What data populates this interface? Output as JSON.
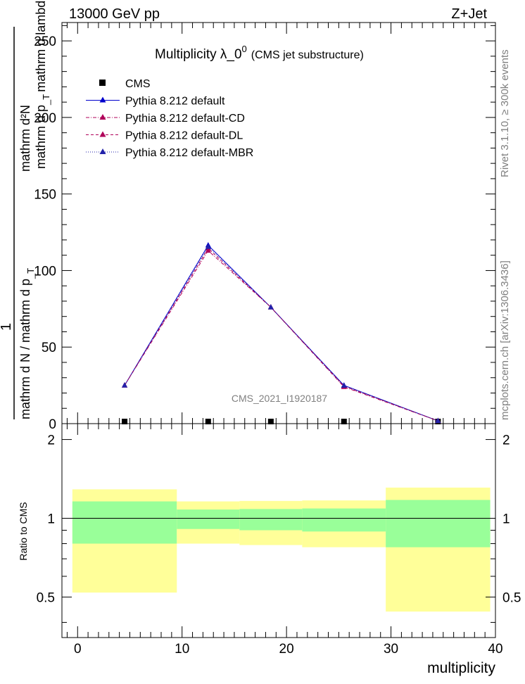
{
  "header": {
    "energy_label": "13000 GeV pp",
    "process_label": "Z+Jet"
  },
  "side_labels": {
    "rivet": "Rivet 3.1.10, ≥ 300k events",
    "mcplots": "mcplots.cern.ch [arXiv:1306.3436]"
  },
  "watermark": "CMS_2021_I1920187",
  "chart_data": [
    {
      "type": "line",
      "title_main": "Multiplicity  λ_0",
      "title_sup": "0",
      "title_sub": "(CMS jet substructure)",
      "ylabel_top": "1",
      "ylabel_bottom": "mathrm d N / mathrm d p",
      "ylabel_frac": "mathrm d²N",
      "ylabel_frac_den": "mathrm d p",
      "ylabel_mid": "_T",
      "ylabel_mid2": "_T",
      "ylabel_lambda": "mathrm d lambda",
      "ylim": [
        0,
        262
      ],
      "yticks": [
        0,
        50,
        100,
        150,
        200,
        250
      ],
      "xlim": [
        -1.5,
        40
      ],
      "legend_position": "top-left",
      "series": [
        {
          "name": "CMS",
          "color": "#000000",
          "style": "marker",
          "x": [
            4.5,
            12.5,
            18.5,
            25.5,
            34.5
          ],
          "y": [
            0.3,
            0.3,
            0.3,
            0.3,
            0.3
          ]
        },
        {
          "name": "Pythia 8.212 default",
          "color": "#0000cc",
          "style": "solid",
          "x": [
            4.5,
            12.5,
            18.5,
            25.5,
            34.5
          ],
          "y": [
            25,
            116.5,
            76,
            25,
            1.8
          ]
        },
        {
          "name": "Pythia 8.212 default-CD",
          "color": "#b0005a",
          "style": "dashdot",
          "x": [
            4.5,
            12.5,
            18.5,
            25.5,
            34.5
          ],
          "y": [
            25,
            113,
            76,
            24,
            1.8
          ]
        },
        {
          "name": "Pythia 8.212 default-DL",
          "color": "#b0005a",
          "style": "dashed",
          "x": [
            4.5,
            12.5,
            18.5,
            25.5,
            34.5
          ],
          "y": [
            25,
            114.5,
            76,
            24.5,
            1.8
          ]
        },
        {
          "name": "Pythia 8.212 default-MBR",
          "color": "#2222aa",
          "style": "dotted",
          "x": [
            4.5,
            12.5,
            18.5,
            25.5,
            34.5
          ],
          "y": [
            25,
            115.5,
            76,
            24.8,
            1.8
          ]
        }
      ]
    },
    {
      "type": "area",
      "ylabel": "Ratio to CMS",
      "xlabel": "multiplicity",
      "xlim": [
        -1.5,
        40
      ],
      "xticks": [
        0,
        10,
        20,
        30,
        40
      ],
      "ylim": [
        0.35,
        2.3
      ],
      "yticks": [
        0.5,
        1,
        2
      ],
      "ytick_labels": [
        "0.5",
        "1",
        "2"
      ],
      "reference_line": 1,
      "bins": [
        {
          "x0": -0.5,
          "x1": 9.5,
          "inner": [
            0.8,
            1.16
          ],
          "outer": [
            0.52,
            1.29
          ]
        },
        {
          "x0": 9.5,
          "x1": 15.5,
          "inner": [
            0.91,
            1.08
          ],
          "outer": [
            0.8,
            1.16
          ]
        },
        {
          "x0": 15.5,
          "x1": 21.5,
          "inner": [
            0.9,
            1.085
          ],
          "outer": [
            0.79,
            1.165
          ]
        },
        {
          "x0": 21.5,
          "x1": 29.5,
          "inner": [
            0.89,
            1.09
          ],
          "outer": [
            0.775,
            1.17
          ]
        },
        {
          "x0": 29.5,
          "x1": 39.5,
          "inner": [
            0.775,
            1.175
          ],
          "outer": [
            0.44,
            1.31
          ]
        }
      ],
      "band_colors": {
        "inner": "#99ff99",
        "outer": "#ffff99"
      }
    }
  ]
}
